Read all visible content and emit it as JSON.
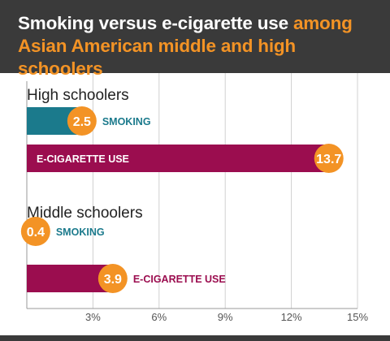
{
  "title": {
    "part1": "Smoking versus e-cigarette use ",
    "part2": "among",
    "part3": "Asian American middle and high schoolers"
  },
  "colors": {
    "header_bg": "#3a3a3a",
    "accent": "#f39325",
    "smoking": "#1b7a8c",
    "ecig": "#9b0d4f",
    "grid": "#d0d0d0",
    "axis": "#999999",
    "tick_label": "#555555"
  },
  "chart_data": {
    "type": "bar",
    "orientation": "horizontal",
    "xlim": [
      0,
      15
    ],
    "xticks": [
      "3%",
      "6%",
      "9%",
      "12%",
      "15%"
    ],
    "xtick_values": [
      3,
      6,
      9,
      12,
      15
    ],
    "groups": [
      {
        "name": "High schoolers",
        "bars": [
          {
            "label": "SMOKING",
            "value": 2.5,
            "value_label": "2.5",
            "series": "smoking"
          },
          {
            "label": "E-CIGARETTE USE",
            "value": 13.7,
            "value_label": "13.7",
            "series": "ecig"
          }
        ]
      },
      {
        "name": "Middle schoolers",
        "bars": [
          {
            "label": "SMOKING",
            "value": 0.4,
            "value_label": "0.4",
            "series": "smoking"
          },
          {
            "label": "E-CIGARETTE USE",
            "value": 3.9,
            "value_label": "3.9",
            "series": "ecig"
          }
        ]
      }
    ]
  }
}
